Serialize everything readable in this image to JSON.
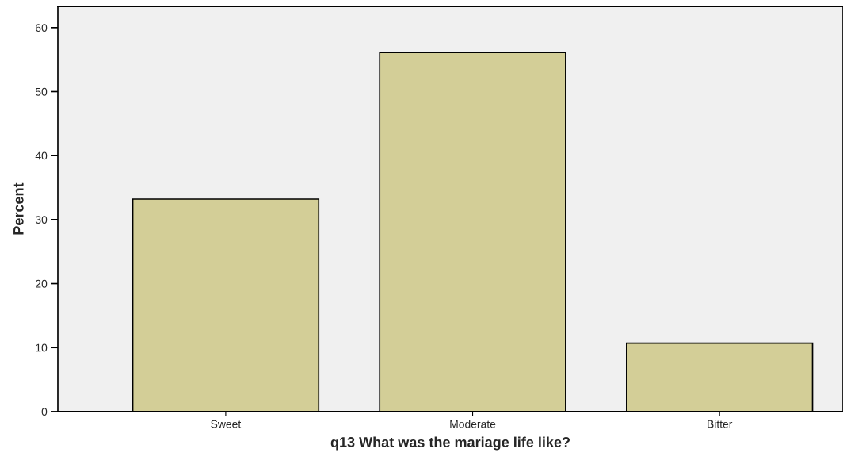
{
  "chart_data": {
    "type": "bar",
    "xlabel": "q13 What was the mariage life like?",
    "ylabel": "Percent",
    "categories": [
      "Sweet",
      "Moderate",
      "Bitter"
    ],
    "values": [
      33.2,
      56.1,
      10.7
    ],
    "color": "#d3ce97",
    "ylim": [
      0,
      63.3
    ],
    "yticks": [
      0,
      10,
      20,
      30,
      40,
      50,
      60
    ],
    "grid": false
  }
}
